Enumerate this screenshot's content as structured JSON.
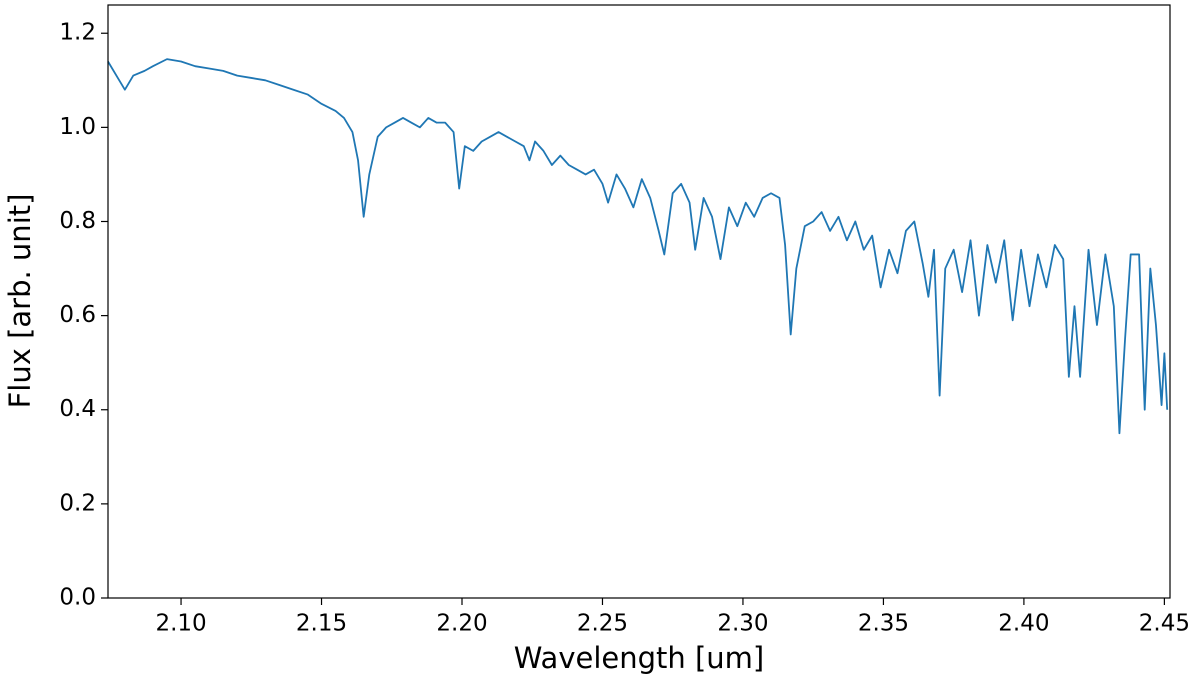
{
  "chart_data": {
    "type": "line",
    "xlabel": "Wavelength [um]",
    "ylabel": "Flux [arb. unit]",
    "color": "#1f77b4",
    "xlim": [
      2.074,
      2.452
    ],
    "ylim": [
      0,
      1.26
    ],
    "xticks": [
      {
        "value": 2.1,
        "label": "2.10"
      },
      {
        "value": 2.15,
        "label": "2.15"
      },
      {
        "value": 2.2,
        "label": "2.20"
      },
      {
        "value": 2.25,
        "label": "2.25"
      },
      {
        "value": 2.3,
        "label": "2.30"
      },
      {
        "value": 2.35,
        "label": "2.35"
      },
      {
        "value": 2.4,
        "label": "2.40"
      },
      {
        "value": 2.45,
        "label": "2.45"
      }
    ],
    "yticks": [
      {
        "value": 0,
        "label": "0.0"
      },
      0.2,
      0.4,
      0.6,
      0.8,
      {
        "value": 1,
        "label": "1.0"
      },
      1.2
    ],
    "x": [
      2.074,
      2.078,
      2.08,
      2.083,
      2.087,
      2.09,
      2.095,
      2.1,
      2.105,
      2.11,
      2.115,
      2.12,
      2.125,
      2.13,
      2.135,
      2.14,
      2.145,
      2.15,
      2.155,
      2.158,
      2.161,
      2.163,
      2.165,
      2.167,
      2.17,
      2.173,
      2.176,
      2.179,
      2.182,
      2.185,
      2.188,
      2.191,
      2.194,
      2.197,
      2.199,
      2.201,
      2.204,
      2.207,
      2.21,
      2.213,
      2.216,
      2.219,
      2.222,
      2.224,
      2.226,
      2.229,
      2.232,
      2.235,
      2.238,
      2.241,
      2.244,
      2.247,
      2.25,
      2.252,
      2.255,
      2.258,
      2.261,
      2.264,
      2.267,
      2.27,
      2.272,
      2.275,
      2.278,
      2.281,
      2.283,
      2.286,
      2.289,
      2.292,
      2.295,
      2.298,
      2.301,
      2.304,
      2.307,
      2.31,
      2.313,
      2.315,
      2.317,
      2.319,
      2.322,
      2.325,
      2.328,
      2.331,
      2.334,
      2.337,
      2.34,
      2.343,
      2.346,
      2.349,
      2.352,
      2.355,
      2.358,
      2.361,
      2.364,
      2.366,
      2.368,
      2.37,
      2.372,
      2.375,
      2.378,
      2.381,
      2.384,
      2.387,
      2.39,
      2.393,
      2.396,
      2.399,
      2.402,
      2.405,
      2.408,
      2.411,
      2.414,
      2.416,
      2.418,
      2.42,
      2.423,
      2.426,
      2.429,
      2.432,
      2.434,
      2.436,
      2.438,
      2.441,
      2.443,
      2.445,
      2.447,
      2.449,
      2.45,
      2.451
    ],
    "values": [
      1.14,
      1.1,
      1.08,
      1.11,
      1.12,
      1.13,
      1.145,
      1.14,
      1.13,
      1.125,
      1.12,
      1.11,
      1.105,
      1.1,
      1.09,
      1.08,
      1.07,
      1.05,
      1.035,
      1.02,
      0.99,
      0.93,
      0.81,
      0.9,
      0.98,
      1.0,
      1.01,
      1.02,
      1.01,
      1.0,
      1.02,
      1.01,
      1.01,
      0.99,
      0.87,
      0.96,
      0.95,
      0.97,
      0.98,
      0.99,
      0.98,
      0.97,
      0.96,
      0.93,
      0.97,
      0.95,
      0.92,
      0.94,
      0.92,
      0.91,
      0.9,
      0.91,
      0.88,
      0.84,
      0.9,
      0.87,
      0.83,
      0.89,
      0.85,
      0.78,
      0.73,
      0.86,
      0.88,
      0.84,
      0.74,
      0.85,
      0.81,
      0.72,
      0.83,
      0.79,
      0.84,
      0.81,
      0.85,
      0.86,
      0.85,
      0.75,
      0.56,
      0.7,
      0.79,
      0.8,
      0.82,
      0.78,
      0.81,
      0.76,
      0.8,
      0.74,
      0.77,
      0.66,
      0.74,
      0.69,
      0.78,
      0.8,
      0.71,
      0.64,
      0.74,
      0.43,
      0.7,
      0.74,
      0.65,
      0.76,
      0.6,
      0.75,
      0.67,
      0.76,
      0.59,
      0.74,
      0.62,
      0.73,
      0.66,
      0.75,
      0.72,
      0.47,
      0.62,
      0.47,
      0.74,
      0.58,
      0.73,
      0.62,
      0.35,
      0.55,
      0.73,
      0.73,
      0.4,
      0.7,
      0.58,
      0.41,
      0.52,
      0.4
    ]
  }
}
